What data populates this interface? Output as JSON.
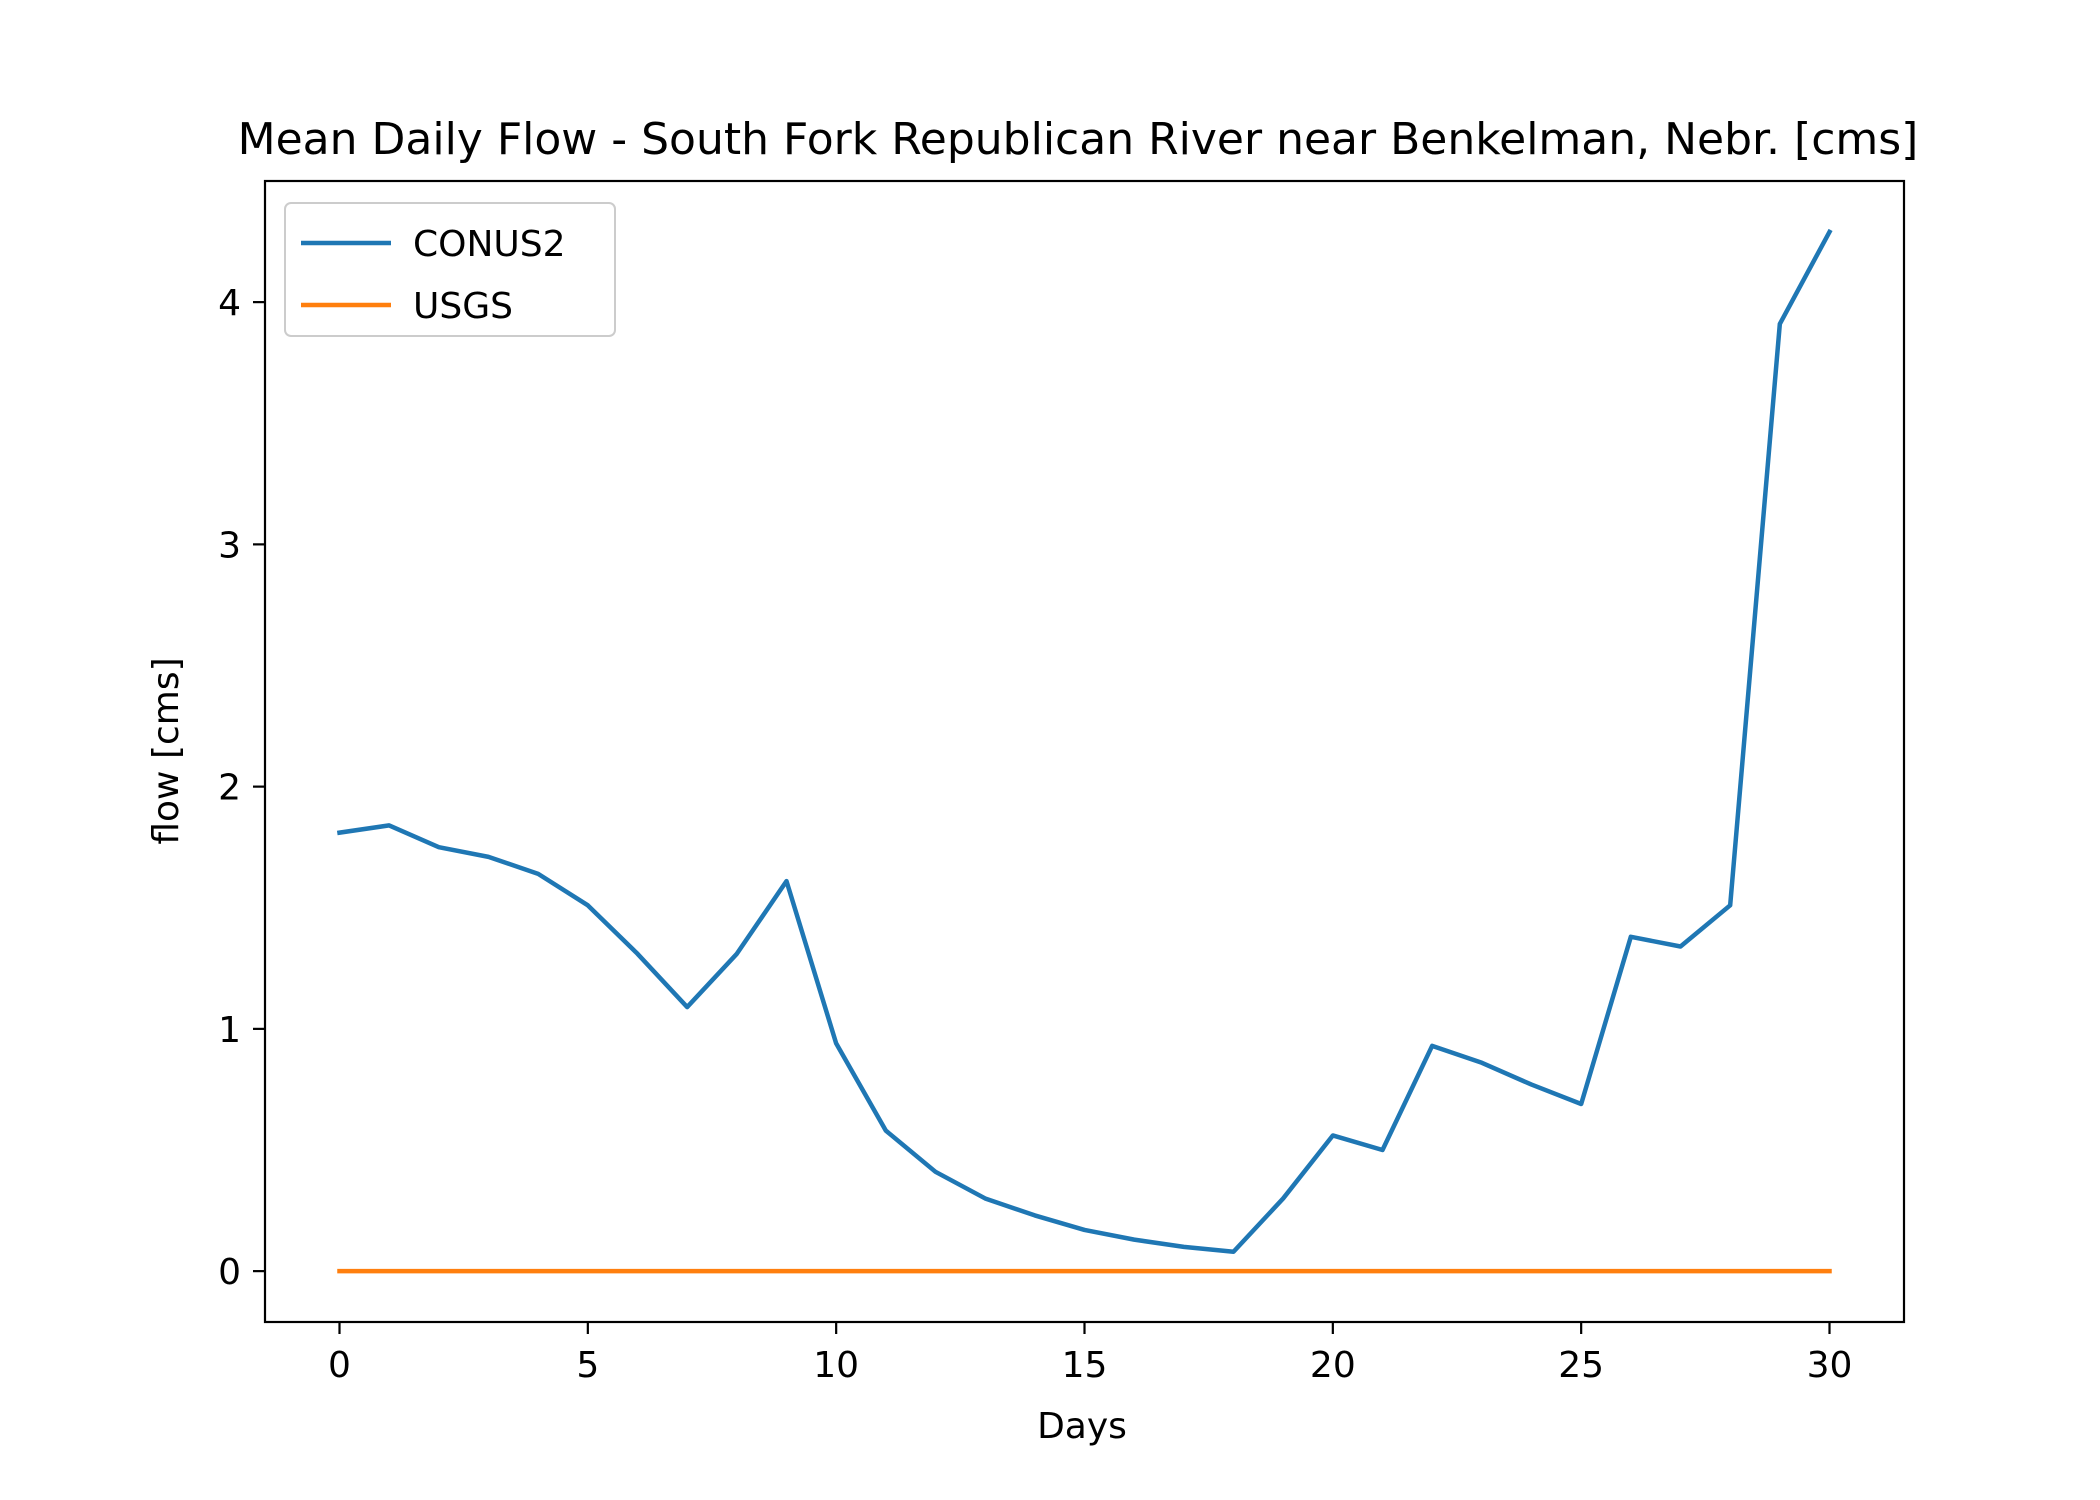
{
  "chart_data": {
    "type": "line",
    "title": "Mean Daily Flow - South Fork Republican River near Benkelman, Nebr. [cms]",
    "xlabel": "Days",
    "ylabel": "flow [cms]",
    "xlim": [
      -1.5,
      31.5
    ],
    "ylim": [
      -0.21,
      4.5
    ],
    "x_ticks": [
      0,
      5,
      10,
      15,
      20,
      25,
      30
    ],
    "y_ticks": [
      0,
      1,
      2,
      3,
      4
    ],
    "grid": false,
    "legend_position": "upper left",
    "x": [
      0,
      1,
      2,
      3,
      4,
      5,
      6,
      7,
      8,
      9,
      10,
      11,
      12,
      13,
      14,
      15,
      16,
      17,
      18,
      19,
      20,
      21,
      22,
      23,
      24,
      25,
      26,
      27,
      28,
      29,
      30
    ],
    "series": [
      {
        "name": "CONUS2",
        "color": "#1f77b4",
        "values": [
          1.81,
          1.84,
          1.75,
          1.71,
          1.64,
          1.51,
          1.31,
          1.09,
          1.31,
          1.61,
          0.94,
          0.58,
          0.41,
          0.3,
          0.23,
          0.17,
          0.13,
          0.1,
          0.08,
          0.3,
          0.56,
          0.5,
          0.93,
          0.86,
          0.77,
          0.69,
          1.38,
          1.34,
          1.51,
          3.91,
          4.29
        ]
      },
      {
        "name": "USGS",
        "color": "#ff7f0e",
        "values": [
          0,
          0,
          0,
          0,
          0,
          0,
          0,
          0,
          0,
          0,
          0,
          0,
          0,
          0,
          0,
          0,
          0,
          0,
          0,
          0,
          0,
          0,
          0,
          0,
          0,
          0,
          0,
          0,
          0,
          0,
          0
        ]
      }
    ]
  }
}
